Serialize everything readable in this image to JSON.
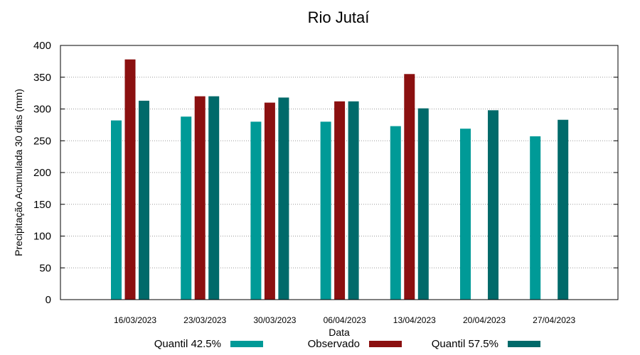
{
  "chart_data": {
    "type": "bar",
    "title": "Rio Jutaí",
    "xlabel": "Data",
    "ylabel": "Precipitação Acumulada 30 dias (mm)",
    "ylim": [
      0,
      400
    ],
    "yticks": [
      0,
      50,
      100,
      150,
      200,
      250,
      300,
      350,
      400
    ],
    "grid": true,
    "legend_position": "bottom",
    "categories": [
      "16/03/2023",
      "23/03/2023",
      "30/03/2023",
      "06/04/2023",
      "13/04/2023",
      "20/04/2023",
      "27/04/2023"
    ],
    "series": [
      {
        "name": "Quantil 42.5%",
        "color": "#009a97",
        "values": [
          282,
          288,
          280,
          280,
          273,
          269,
          257
        ]
      },
      {
        "name": "Observado",
        "color": "#8b1010",
        "values": [
          378,
          320,
          310,
          312,
          355,
          null,
          null
        ]
      },
      {
        "name": "Quantil 57.5%",
        "color": "#006a6a",
        "values": [
          313,
          320,
          318,
          312,
          301,
          298,
          283
        ]
      }
    ]
  }
}
